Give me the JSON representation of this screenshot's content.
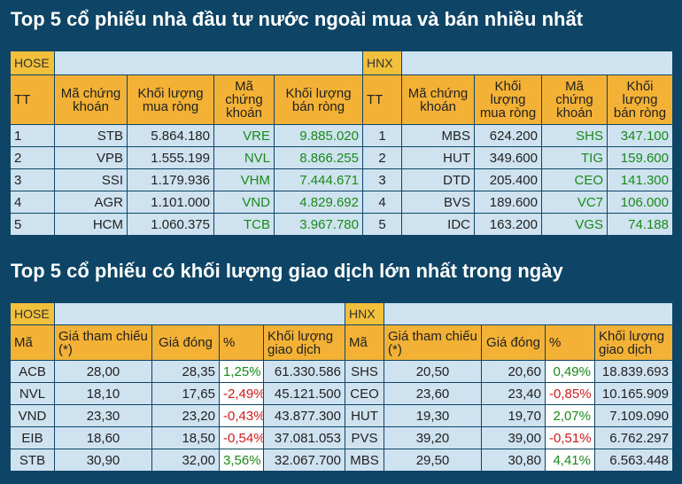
{
  "section1": {
    "title": "Top 5 cổ phiếu nhà đầu tư nước ngoài mua và bán nhiều nhất",
    "hose_label": "HOSE",
    "hnx_label": "HNX",
    "headers": {
      "tt": "TT",
      "ma": "Mã chứng khoán",
      "kl_mua": "Khối lượng mua ròng",
      "kl_ban": "Khối lượng bán ròng"
    },
    "hose_rows": [
      {
        "tt": "1",
        "buy_code": "STB",
        "buy_vol": "5.864.180",
        "sell_code": "VRE",
        "sell_vol": "9.885.020"
      },
      {
        "tt": "2",
        "buy_code": "VPB",
        "buy_vol": "1.555.199",
        "sell_code": "NVL",
        "sell_vol": "8.866.255"
      },
      {
        "tt": "3",
        "buy_code": "SSI",
        "buy_vol": "1.179.936",
        "sell_code": "VHM",
        "sell_vol": "7.444.671"
      },
      {
        "tt": "4",
        "buy_code": "AGR",
        "buy_vol": "1.101.000",
        "sell_code": "VND",
        "sell_vol": "4.829.692"
      },
      {
        "tt": "5",
        "buy_code": "HCM",
        "buy_vol": "1.060.375",
        "sell_code": "TCB",
        "sell_vol": "3.967.780"
      }
    ],
    "hnx_rows": [
      {
        "tt": "1",
        "buy_code": "MBS",
        "buy_vol": "624.200",
        "sell_code": "SHS",
        "sell_vol": "347.100"
      },
      {
        "tt": "2",
        "buy_code": "HUT",
        "buy_vol": "349.600",
        "sell_code": "TIG",
        "sell_vol": "159.600"
      },
      {
        "tt": "3",
        "buy_code": "DTD",
        "buy_vol": "205.400",
        "sell_code": "CEO",
        "sell_vol": "141.300"
      },
      {
        "tt": "4",
        "buy_code": "BVS",
        "buy_vol": "189.600",
        "sell_code": "VC7",
        "sell_vol": "106.000"
      },
      {
        "tt": "5",
        "buy_code": "IDC",
        "buy_vol": "163.200",
        "sell_code": "VGS",
        "sell_vol": "74.188"
      }
    ]
  },
  "section2": {
    "title": "Top 5 cổ phiếu có khối lượng giao dịch lớn nhất trong ngày",
    "hose_label": "HOSE",
    "hnx_label": "HNX",
    "headers": {
      "ma": "Mã",
      "ref": "Giá tham chiếu (*)",
      "close": "Giá đóng",
      "pct": "%",
      "vol": "Khối lượng giao dịch"
    },
    "hose_rows": [
      {
        "code": "ACB",
        "ref": "28,00",
        "close": "28,35",
        "pct": "1,25%",
        "dir": "up",
        "vol": "61.330.586"
      },
      {
        "code": "NVL",
        "ref": "18,10",
        "close": "17,65",
        "pct": "-2,49%",
        "dir": "down",
        "vol": "45.121.500"
      },
      {
        "code": "VND",
        "ref": "23,30",
        "close": "23,20",
        "pct": "-0,43%",
        "dir": "down",
        "vol": "43.877.300"
      },
      {
        "code": "EIB",
        "ref": "18,60",
        "close": "18,50",
        "pct": "-0,54%",
        "dir": "down",
        "vol": "37.081.053"
      },
      {
        "code": "STB",
        "ref": "30,90",
        "close": "32,00",
        "pct": "3,56%",
        "dir": "up",
        "vol": "32.067.700"
      }
    ],
    "hnx_rows": [
      {
        "code": "SHS",
        "ref": "20,50",
        "close": "20,60",
        "pct": "0,49%",
        "dir": "up",
        "vol": "18.839.693"
      },
      {
        "code": "CEO",
        "ref": "23,60",
        "close": "23,40",
        "pct": "-0,85%",
        "dir": "down",
        "vol": "10.165.909"
      },
      {
        "code": "HUT",
        "ref": "19,30",
        "close": "19,70",
        "pct": "2,07%",
        "dir": "up",
        "vol": "7.109.090"
      },
      {
        "code": "PVS",
        "ref": "39,20",
        "close": "39,00",
        "pct": "-0,51%",
        "dir": "down",
        "vol": "6.762.297"
      },
      {
        "code": "MBS",
        "ref": "29,50",
        "close": "30,80",
        "pct": "4,41%",
        "dir": "up",
        "vol": "6.563.448"
      }
    ]
  },
  "colors": {
    "background": "#0e4566",
    "header": "#f3b235",
    "cell": "#cfe2ef",
    "up": "#1a8a1a",
    "down": "#d11a1a"
  }
}
